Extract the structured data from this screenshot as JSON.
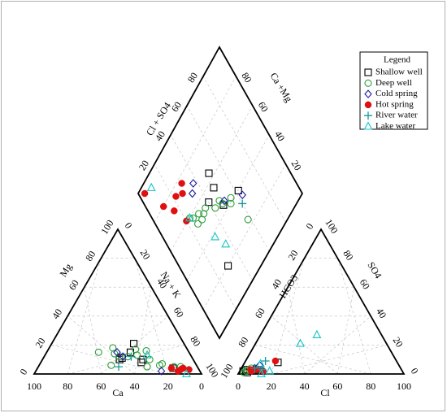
{
  "chart_data": {
    "type": "scatter",
    "subtype": "piper-diagram",
    "title": "",
    "ticks": [
      "0",
      "20",
      "40",
      "60",
      "80",
      "100"
    ],
    "axis_labels": {
      "left_bottom": "Ca",
      "left_side": "Mg",
      "left_right_side": "Na + K",
      "right_bottom": "Cl",
      "right_side": "SO4",
      "right_left_side": "HCO3",
      "diamond_upper_left": "Cl + SO4",
      "diamond_upper_right": "Ca +Mg"
    },
    "legend": {
      "title": "Legend",
      "placement": "top-right",
      "items": [
        {
          "name": "Shallow well",
          "marker": "square",
          "color": "#000000"
        },
        {
          "name": "Deep well",
          "marker": "circle",
          "color": "#2e9e3a"
        },
        {
          "name": "Cold spring",
          "marker": "diamond",
          "color": "#1a1aa8"
        },
        {
          "name": "Hot spring",
          "marker": "filled-circle",
          "color": "#e01010"
        },
        {
          "name": "River water",
          "marker": "plus",
          "color": "#159999"
        },
        {
          "name": "Lake water",
          "marker": "triangle",
          "color": "#12c4c4"
        }
      ]
    },
    "series": [
      {
        "name": "Shallow well",
        "cation": [
          [
            32,
            8
          ],
          [
            35,
            15
          ],
          [
            30,
            10
          ],
          [
            44,
            10
          ],
          [
            15,
            4
          ],
          [
            30,
            21
          ],
          [
            42,
            11
          ]
        ],
        "anion": [
          [
            20,
            8
          ],
          [
            11,
            3
          ],
          [
            5,
            1
          ],
          [
            3,
            3
          ],
          [
            2,
            2
          ]
        ],
        "diamond": [
          [
            30,
            80
          ],
          [
            62,
            60
          ],
          [
            48,
            44
          ],
          [
            40,
            46
          ],
          [
            50,
            36
          ],
          [
            48,
            56
          ]
        ]
      },
      {
        "name": "Deep well",
        "cation": [
          [
            38,
            12
          ],
          [
            43,
            12
          ],
          [
            54,
            15
          ],
          [
            26,
            10
          ],
          [
            31,
            17
          ],
          [
            44,
            18
          ],
          [
            22,
            6
          ],
          [
            30,
            5
          ],
          [
            51,
            6
          ],
          [
            25,
            16
          ],
          [
            20,
            7
          ],
          [
            32,
            13
          ],
          [
            10,
            5
          ],
          [
            45,
            14
          ],
          [
            14,
            5
          ]
        ],
        "anion": [
          [
            4,
            2
          ],
          [
            5,
            3
          ],
          [
            6,
            4
          ],
          [
            3,
            1
          ]
        ],
        "diamond": [
          [
            58,
            76
          ],
          [
            53,
            60
          ],
          [
            47,
            52
          ],
          [
            42,
            52
          ],
          [
            33,
            47
          ],
          [
            30,
            48
          ],
          [
            26,
            47
          ],
          [
            25,
            42
          ],
          [
            23,
            40
          ],
          [
            55,
            58
          ],
          [
            48,
            55
          ],
          [
            30,
            44
          ],
          [
            36,
            46
          ]
        ]
      },
      {
        "name": "Cold spring",
        "cation": [
          [
            41,
            12
          ],
          [
            23,
            2
          ],
          [
            11,
            3
          ],
          [
            43,
            15
          ]
        ],
        "anion": [
          [
            14,
            2
          ],
          [
            10,
            6
          ],
          [
            8,
            4
          ]
        ],
        "diamond": [
          [
            63,
            64
          ],
          [
            37,
            30
          ],
          [
            33,
            33
          ],
          [
            50,
            55
          ]
        ]
      },
      {
        "name": "Hot spring",
        "cation": [
          [
            9,
            4
          ],
          [
            13,
            2
          ],
          [
            11,
            3
          ],
          [
            6,
            3
          ],
          [
            16,
            4
          ]
        ],
        "anion": [
          [
            18,
            9
          ],
          [
            8,
            3
          ],
          [
            14,
            2
          ],
          [
            6,
            3
          ],
          [
            7,
            2
          ],
          [
            10,
            3
          ]
        ],
        "diamond": [
          [
            20,
            39
          ],
          [
            30,
            23
          ],
          [
            22,
            24
          ],
          [
            11,
            20
          ],
          [
            16,
            28
          ],
          [
            4,
            4
          ],
          [
            27,
            27
          ]
        ]
      },
      {
        "name": "River water",
        "cation": [
          [
            47,
            5
          ],
          [
            36,
            12
          ]
        ],
        "anion": [
          [
            12,
            9
          ],
          [
            8,
            4
          ],
          [
            13,
            3
          ]
        ],
        "diamond": [
          [
            60,
            67
          ]
        ]
      },
      {
        "name": "Lake water",
        "cation": [
          [
            26,
            13
          ],
          [
            9,
            0
          ]
        ],
        "anion": [
          [
            27,
            21
          ],
          [
            14,
            0
          ],
          [
            34,
            27
          ],
          [
            18,
            2
          ],
          [
            10,
            7
          ]
        ],
        "diamond": [
          [
            36,
            71
          ],
          [
            32,
            62
          ],
          [
            23,
            40
          ],
          [
            10,
            6
          ]
        ]
      }
    ]
  }
}
